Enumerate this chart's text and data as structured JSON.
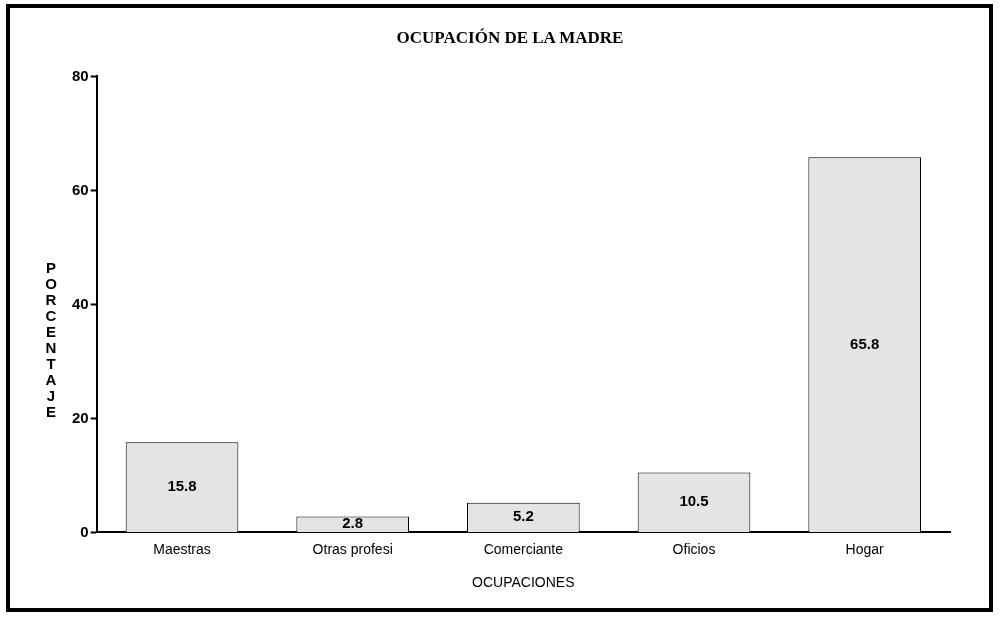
{
  "chart_data": {
    "type": "bar",
    "title": "OCUPACIÓN DE LA MADRE",
    "xlabel": "OCUPACIONES",
    "ylabel": "PORCENTAJE",
    "categories": [
      "Maestras",
      "Otras profesi",
      "Comerciante",
      "Oficios",
      "Hogar"
    ],
    "values": [
      15.8,
      2.8,
      5.2,
      10.5,
      65.8
    ],
    "color": "#e4e4e4",
    "ylim": [
      0,
      80
    ],
    "yticks": [
      0,
      20,
      40,
      60,
      80
    ],
    "grid": false,
    "legend": false,
    "data_labels": true
  }
}
